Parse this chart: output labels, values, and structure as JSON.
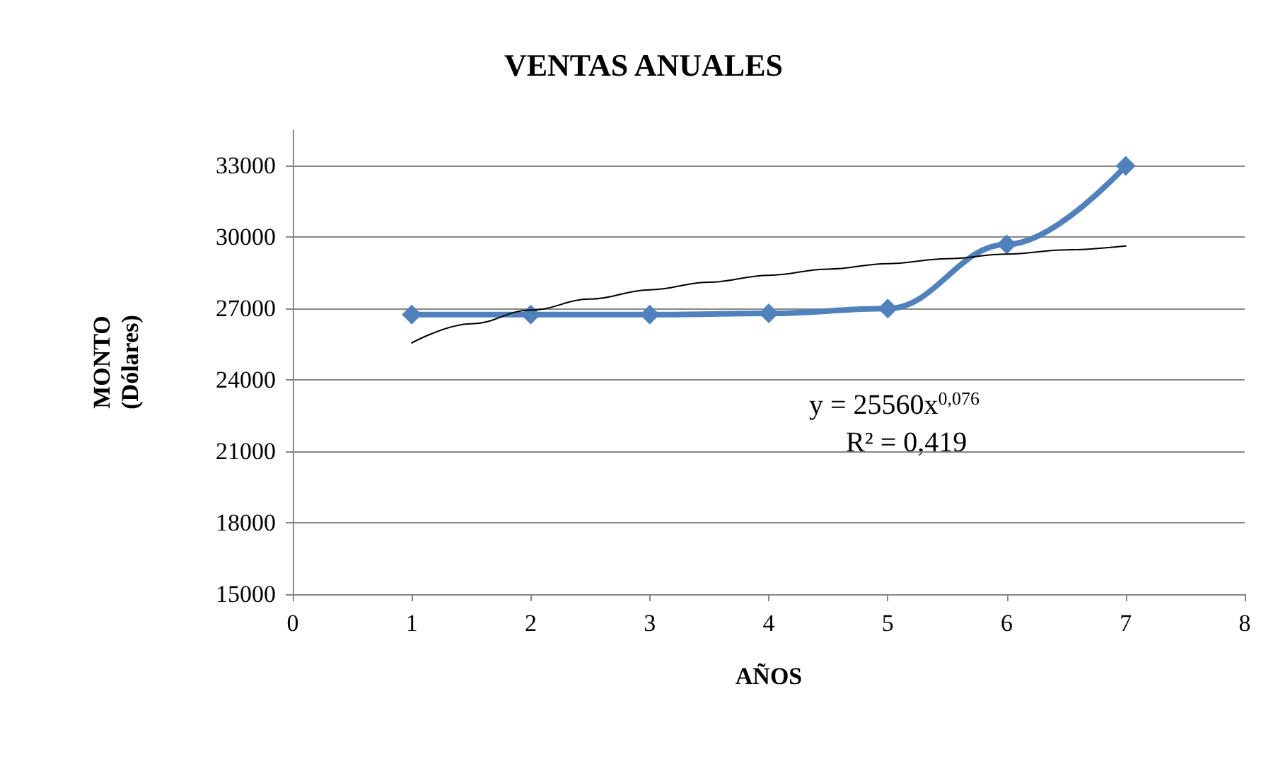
{
  "chart_data": {
    "type": "line",
    "title": "VENTAS ANUALES",
    "xlabel": "AÑOS",
    "ylabel": "MONTO (Dólares)",
    "x": [
      1,
      2,
      3,
      4,
      5,
      6,
      7
    ],
    "series": [
      {
        "color": "#4f81bd",
        "values": [
          26750,
          26750,
          26750,
          26800,
          27000,
          29700,
          33000
        ],
        "marker": "diamond"
      },
      {
        "type": "line",
        "color": "#000000",
        "marker": "none",
        "x": [
          1,
          1.5,
          2,
          2.5,
          3,
          3.5,
          4,
          4.5,
          5,
          5.5,
          6,
          6.5,
          7
        ],
        "values": [
          25560,
          26360,
          26940,
          27400,
          27790,
          28110,
          28400,
          28660,
          28890,
          29100,
          29290,
          29470,
          29630
        ]
      }
    ],
    "xlim": [
      0,
      8
    ],
    "xticks": [
      0,
      1,
      2,
      3,
      4,
      5,
      6,
      7,
      8
    ],
    "ylim": [
      15000,
      34500
    ],
    "yticks": [
      15000,
      18000,
      21000,
      24000,
      27000,
      30000,
      33000
    ],
    "grid": "y",
    "annotations": [
      "y = 25560x$^{0,076}$",
      "R² = 0,419"
    ]
  }
}
